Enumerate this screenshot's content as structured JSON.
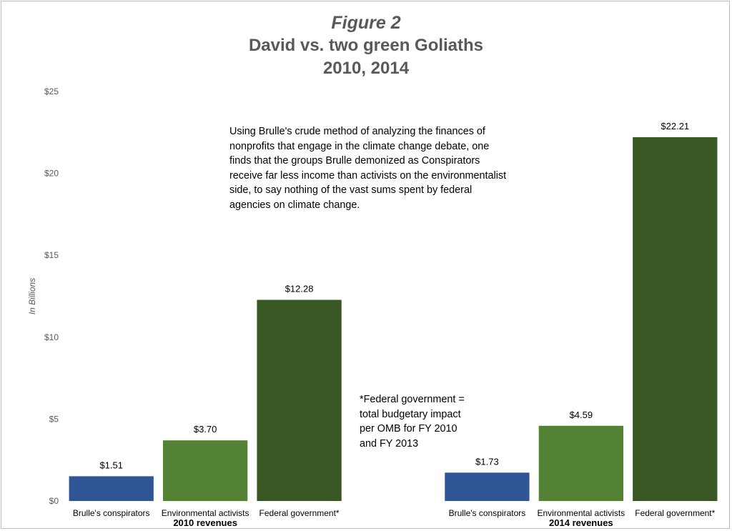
{
  "titles": {
    "line1": "Figure 2",
    "line2": "David vs. two green Goliaths",
    "line3": "2010, 2014"
  },
  "annotations": {
    "main": "Using Brulle's crude method of analyzing the finances of nonprofits that engage in the climate change debate, one finds that the groups Brulle demonized as Conspirators receive far less income than activists on the environmentalist side, to say nothing of the vast sums spent by federal agencies on climate change.",
    "footnote": "*Federal government = total budgetary impact per OMB for FY 2010 and FY 2013"
  },
  "colors": {
    "conspirators": "#2f5597",
    "activists": "#548235",
    "federal": "#385723"
  },
  "chart_data": {
    "type": "bar",
    "ylabel": "In Billions",
    "ylim": [
      0,
      25
    ],
    "yticks": [
      0,
      5,
      10,
      15,
      20,
      25
    ],
    "ytick_labels": [
      "$0",
      "$5",
      "$10",
      "$15",
      "$20",
      "$25"
    ],
    "grid": false,
    "groups": [
      {
        "label": "2010 revenues",
        "bars": [
          {
            "category": "Brulle's conspirators",
            "value": 1.51,
            "label": "$1.51",
            "color_key": "conspirators"
          },
          {
            "category": "Environmental activists",
            "value": 3.7,
            "label": "$3.70",
            "color_key": "activists"
          },
          {
            "category": "Federal government*",
            "value": 12.28,
            "label": "$12.28",
            "color_key": "federal"
          }
        ]
      },
      {
        "label": "2014 revenues",
        "bars": [
          {
            "category": "Brulle's conspirators",
            "value": 1.73,
            "label": "$1.73",
            "color_key": "conspirators"
          },
          {
            "category": "Environmental activists",
            "value": 4.59,
            "label": "$4.59",
            "color_key": "activists"
          },
          {
            "category": "Federal government*",
            "value": 22.21,
            "label": "$22.21",
            "color_key": "federal"
          }
        ]
      }
    ]
  }
}
